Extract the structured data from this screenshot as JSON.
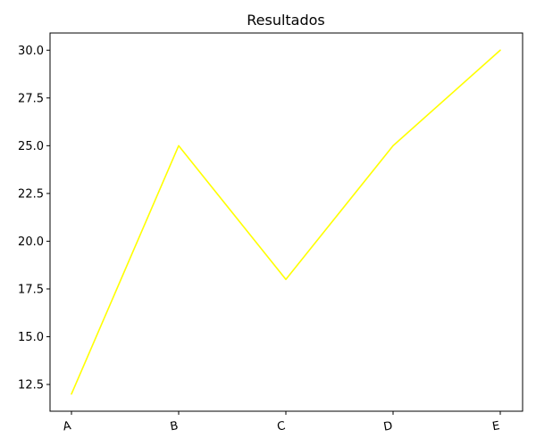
{
  "chart_data": {
    "type": "line",
    "title": "Resultados",
    "xlabel": "",
    "ylabel": "",
    "categories": [
      "A",
      "B",
      "C",
      "D",
      "E"
    ],
    "series": [
      {
        "values": [
          12,
          25,
          18,
          25,
          30
        ],
        "color": "#ffff00"
      }
    ],
    "ylim": [
      11.1,
      30.9
    ],
    "yticks": [
      12.5,
      15.0,
      17.5,
      20.0,
      22.5,
      25.0,
      27.5,
      30.0
    ],
    "ytick_labels": [
      "12.5",
      "15.0",
      "17.5",
      "20.0",
      "22.5",
      "25.0",
      "27.5",
      "30.0"
    ],
    "xtick_rotation": "slight",
    "grid": false,
    "legend": false
  }
}
